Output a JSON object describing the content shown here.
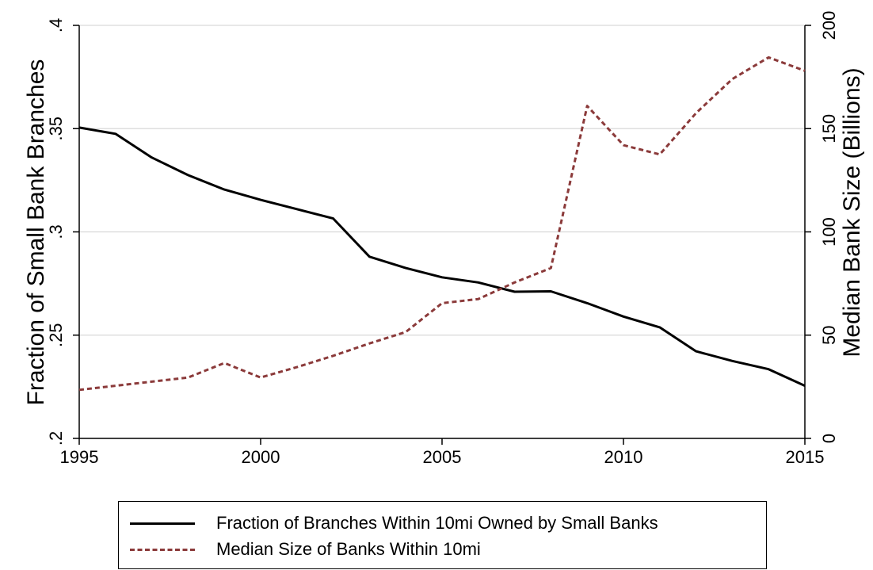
{
  "chart_data": {
    "type": "line",
    "title": "",
    "xlabel": "",
    "ylabel": "Fraction of Small Bank Branches",
    "y2label": "Median Bank Size (Billions)",
    "x": [
      1995,
      1996,
      1997,
      1998,
      1999,
      2000,
      2001,
      2002,
      2003,
      2004,
      2005,
      2006,
      2007,
      2008,
      2009,
      2010,
      2011,
      2012,
      2013,
      2014,
      2015
    ],
    "xlim": [
      1995,
      2015
    ],
    "ylim": [
      0.2,
      0.4
    ],
    "y2lim": [
      0,
      200
    ],
    "xticks": [
      1995,
      2000,
      2005,
      2010,
      2015
    ],
    "xtick_labels": [
      "1995",
      "2000",
      "2005",
      "2010",
      "2015"
    ],
    "yticks": [
      0.2,
      0.25,
      0.3,
      0.35,
      0.4
    ],
    "ytick_labels": [
      ".2",
      ".25",
      ".3",
      ".35",
      ".4"
    ],
    "y2ticks": [
      0,
      50,
      100,
      150,
      200
    ],
    "y2tick_labels": [
      "0",
      "50",
      "100",
      "150",
      "200"
    ],
    "grid": true,
    "legend_position": "bottom",
    "series": [
      {
        "name": "Fraction of Branches Within 10mi Owned by Small Banks",
        "axis": "left",
        "color": "#000000",
        "style": "solid",
        "values": [
          0.3505,
          0.3475,
          0.336,
          0.3275,
          0.3205,
          0.3155,
          0.311,
          0.3065,
          0.288,
          0.2825,
          0.278,
          0.2755,
          0.271,
          0.2712,
          0.2655,
          0.259,
          0.2538,
          0.2422,
          0.2375,
          0.2335,
          0.2255
        ]
      },
      {
        "name": "Median Size of Banks Within 10mi",
        "axis": "right",
        "color": "#8b3a3a",
        "style": "dashed",
        "values": [
          23.5,
          25.5,
          27.5,
          29.5,
          36.5,
          29.5,
          34.5,
          40,
          46,
          51.5,
          65.5,
          67.5,
          75.5,
          82.5,
          161,
          142,
          137.5,
          157.5,
          174,
          184.5,
          178
        ]
      }
    ]
  }
}
